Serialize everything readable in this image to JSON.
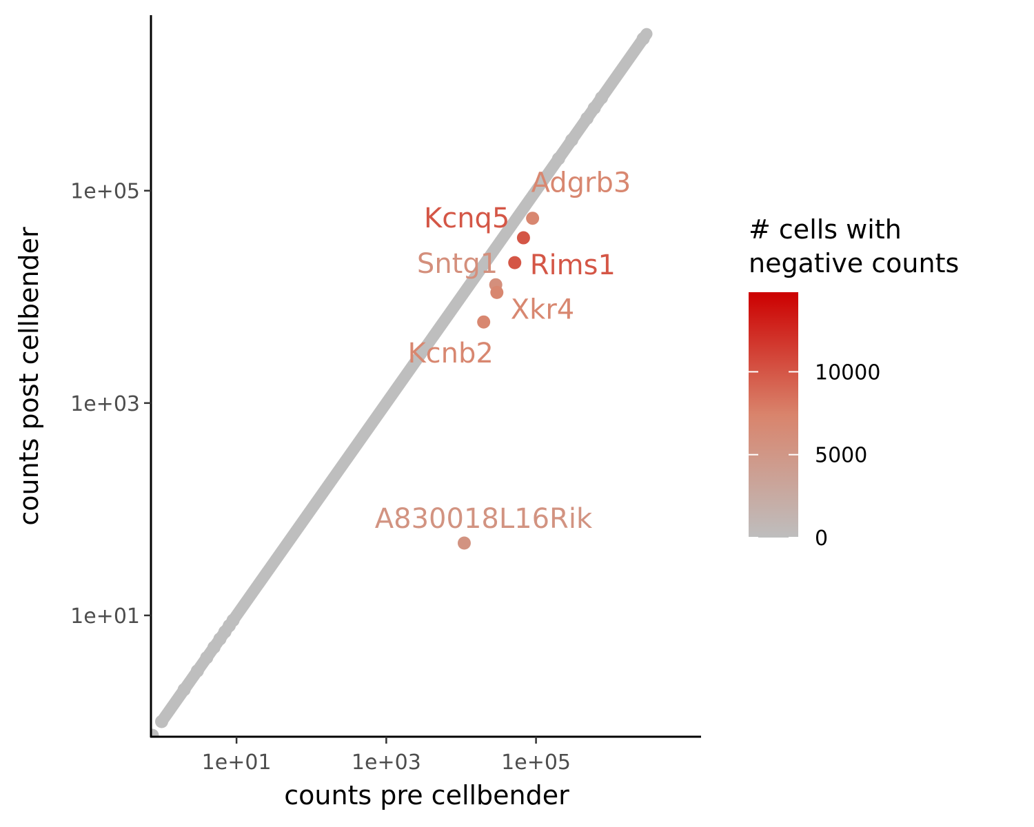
{
  "chart_data": {
    "type": "scatter",
    "x_scale": "log10",
    "y_scale": "log10",
    "xlabel": "counts pre cellbender",
    "ylabel": "counts post cellbender",
    "x_ticks": [
      {
        "value": 10,
        "label": "1e+01"
      },
      {
        "value": 1000,
        "label": "1e+03"
      },
      {
        "value": 100000,
        "label": "1e+05"
      }
    ],
    "y_ticks": [
      {
        "value": 10,
        "label": "1e+01"
      },
      {
        "value": 1000,
        "label": "1e+03"
      },
      {
        "value": 100000,
        "label": "1e+05"
      }
    ],
    "xlim": [
      0.72,
      16000000
    ],
    "ylim": [
      0.72,
      4500000
    ],
    "grid": false,
    "diagonal_band": {
      "description": "dense band of genes where counts post = counts pre",
      "x_from": 1,
      "x_to": 3000000,
      "color_value": 0
    },
    "points": [
      {
        "x": 1,
        "y": 1,
        "negative_cells": 0
      },
      {
        "x": 2,
        "y": 2,
        "negative_cells": 0
      },
      {
        "x": 3,
        "y": 3,
        "negative_cells": 0
      },
      {
        "x": 4,
        "y": 4,
        "negative_cells": 0
      },
      {
        "x": 5,
        "y": 5,
        "negative_cells": 0
      },
      {
        "x": 6,
        "y": 6,
        "negative_cells": 0
      },
      {
        "x": 7,
        "y": 7,
        "negative_cells": 0
      },
      {
        "x": 8,
        "y": 8,
        "negative_cells": 0
      },
      {
        "x": 9,
        "y": 9,
        "negative_cells": 0
      },
      {
        "x": 200000,
        "y": 200000,
        "negative_cells": 0
      },
      {
        "x": 300000,
        "y": 300000,
        "negative_cells": 0
      },
      {
        "x": 480000,
        "y": 480000,
        "negative_cells": 0
      },
      {
        "x": 600000,
        "y": 600000,
        "negative_cells": 0
      },
      {
        "x": 750000,
        "y": 750000,
        "negative_cells": 0
      },
      {
        "x": 2700000,
        "y": 2700000,
        "negative_cells": 0
      }
    ],
    "labeled_points": [
      {
        "name": "Adgrb3",
        "x": 90000,
        "y": 55000,
        "negative_cells": 7000
      },
      {
        "name": "Kcnq5",
        "x": 68000,
        "y": 36000,
        "negative_cells": 10000
      },
      {
        "name": "Rims1",
        "x": 52000,
        "y": 21000,
        "negative_cells": 10000
      },
      {
        "name": "Sntg1",
        "x": 29000,
        "y": 13000,
        "negative_cells": 6000
      },
      {
        "name": "Xkr4",
        "x": 30000,
        "y": 11000,
        "negative_cells": 7000
      },
      {
        "name": "Kcnb2",
        "x": 20000,
        "y": 5800,
        "negative_cells": 7000
      },
      {
        "name": "A830018L16Rik",
        "x": 11000,
        "y": 48,
        "negative_cells": 5500
      }
    ],
    "legend": {
      "title_lines": [
        "# cells with",
        "negative counts"
      ],
      "type": "colorbar",
      "placement": "right",
      "range": [
        0,
        14800
      ],
      "ticks": [
        {
          "value": 0,
          "label": "0"
        },
        {
          "value": 5000,
          "label": "5000"
        },
        {
          "value": 10000,
          "label": "10000"
        }
      ],
      "color_low": "#bebebe",
      "color_high": "#cc0000"
    }
  }
}
